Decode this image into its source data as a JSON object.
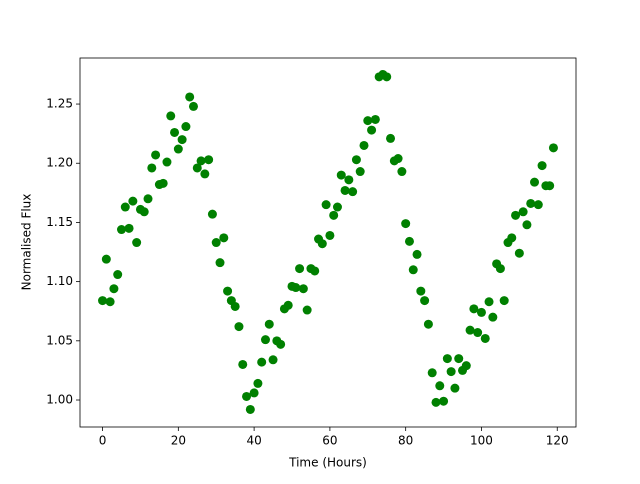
{
  "chart_data": {
    "type": "scatter",
    "x_label": "Time (Hours)",
    "y_label": "Normalised Flux",
    "x": [
      0,
      1,
      2,
      3,
      4,
      5,
      6,
      7,
      8,
      9,
      10,
      11,
      12,
      13,
      14,
      15,
      16,
      17,
      18,
      19,
      20,
      21,
      22,
      23,
      24,
      25,
      26,
      27,
      28,
      29,
      30,
      31,
      32,
      33,
      34,
      35,
      36,
      37,
      38,
      39,
      40,
      41,
      42,
      43,
      44,
      45,
      46,
      47,
      48,
      49,
      50,
      51,
      52,
      53,
      54,
      55,
      56,
      57,
      58,
      59,
      60,
      61,
      62,
      63,
      64,
      65,
      66,
      67,
      68,
      69,
      70,
      71,
      72,
      73,
      74,
      75,
      76,
      77,
      78,
      79,
      80,
      81,
      82,
      83,
      84,
      85,
      86,
      87,
      88,
      89,
      90,
      91,
      92,
      93,
      94,
      95,
      96,
      97,
      98,
      99,
      100,
      101,
      102,
      103,
      104,
      105,
      106,
      107,
      108,
      109,
      110,
      111,
      112,
      113,
      114,
      115,
      116,
      117,
      118,
      119
    ],
    "series": [
      {
        "color": "#008000",
        "values": [
          1.084,
          1.119,
          1.083,
          1.094,
          1.106,
          1.144,
          1.163,
          1.145,
          1.168,
          1.133,
          1.161,
          1.159,
          1.17,
          1.196,
          1.207,
          1.182,
          1.183,
          1.201,
          1.24,
          1.226,
          1.212,
          1.22,
          1.231,
          1.256,
          1.248,
          1.196,
          1.202,
          1.191,
          1.203,
          1.157,
          1.133,
          1.116,
          1.137,
          1.092,
          1.084,
          1.079,
          1.062,
          1.03,
          1.003,
          0.992,
          1.006,
          1.014,
          1.032,
          1.051,
          1.064,
          1.034,
          1.05,
          1.047,
          1.077,
          1.08,
          1.096,
          1.095,
          1.111,
          1.094,
          1.076,
          1.111,
          1.109,
          1.136,
          1.132,
          1.165,
          1.139,
          1.156,
          1.163,
          1.19,
          1.177,
          1.186,
          1.176,
          1.203,
          1.193,
          1.215,
          1.236,
          1.228,
          1.237,
          1.273,
          1.275,
          1.273,
          1.221,
          1.202,
          1.204,
          1.193,
          1.149,
          1.134,
          1.11,
          1.123,
          1.092,
          1.084,
          1.064,
          1.023,
          0.998,
          1.012,
          0.999,
          1.035,
          1.024,
          1.01,
          1.035,
          1.025,
          1.029,
          1.059,
          1.077,
          1.057,
          1.074,
          1.052,
          1.083,
          1.07,
          1.115,
          1.111,
          1.084,
          1.133,
          1.137,
          1.156,
          1.124,
          1.159,
          1.148,
          1.166,
          1.184,
          1.165,
          1.198,
          1.181,
          1.181,
          1.213
        ]
      }
    ],
    "xlim": [
      -5.95,
      124.95
    ],
    "ylim": [
      0.9772,
      1.2889
    ],
    "xticks": [
      0,
      20,
      40,
      60,
      80,
      100,
      120
    ],
    "yticks": [
      {
        "value": 1,
        "label": "1.00"
      },
      1.05,
      {
        "value": 1.1,
        "label": "1.10"
      },
      1.15,
      {
        "value": 1.2,
        "label": "1.20"
      },
      1.25
    ]
  }
}
